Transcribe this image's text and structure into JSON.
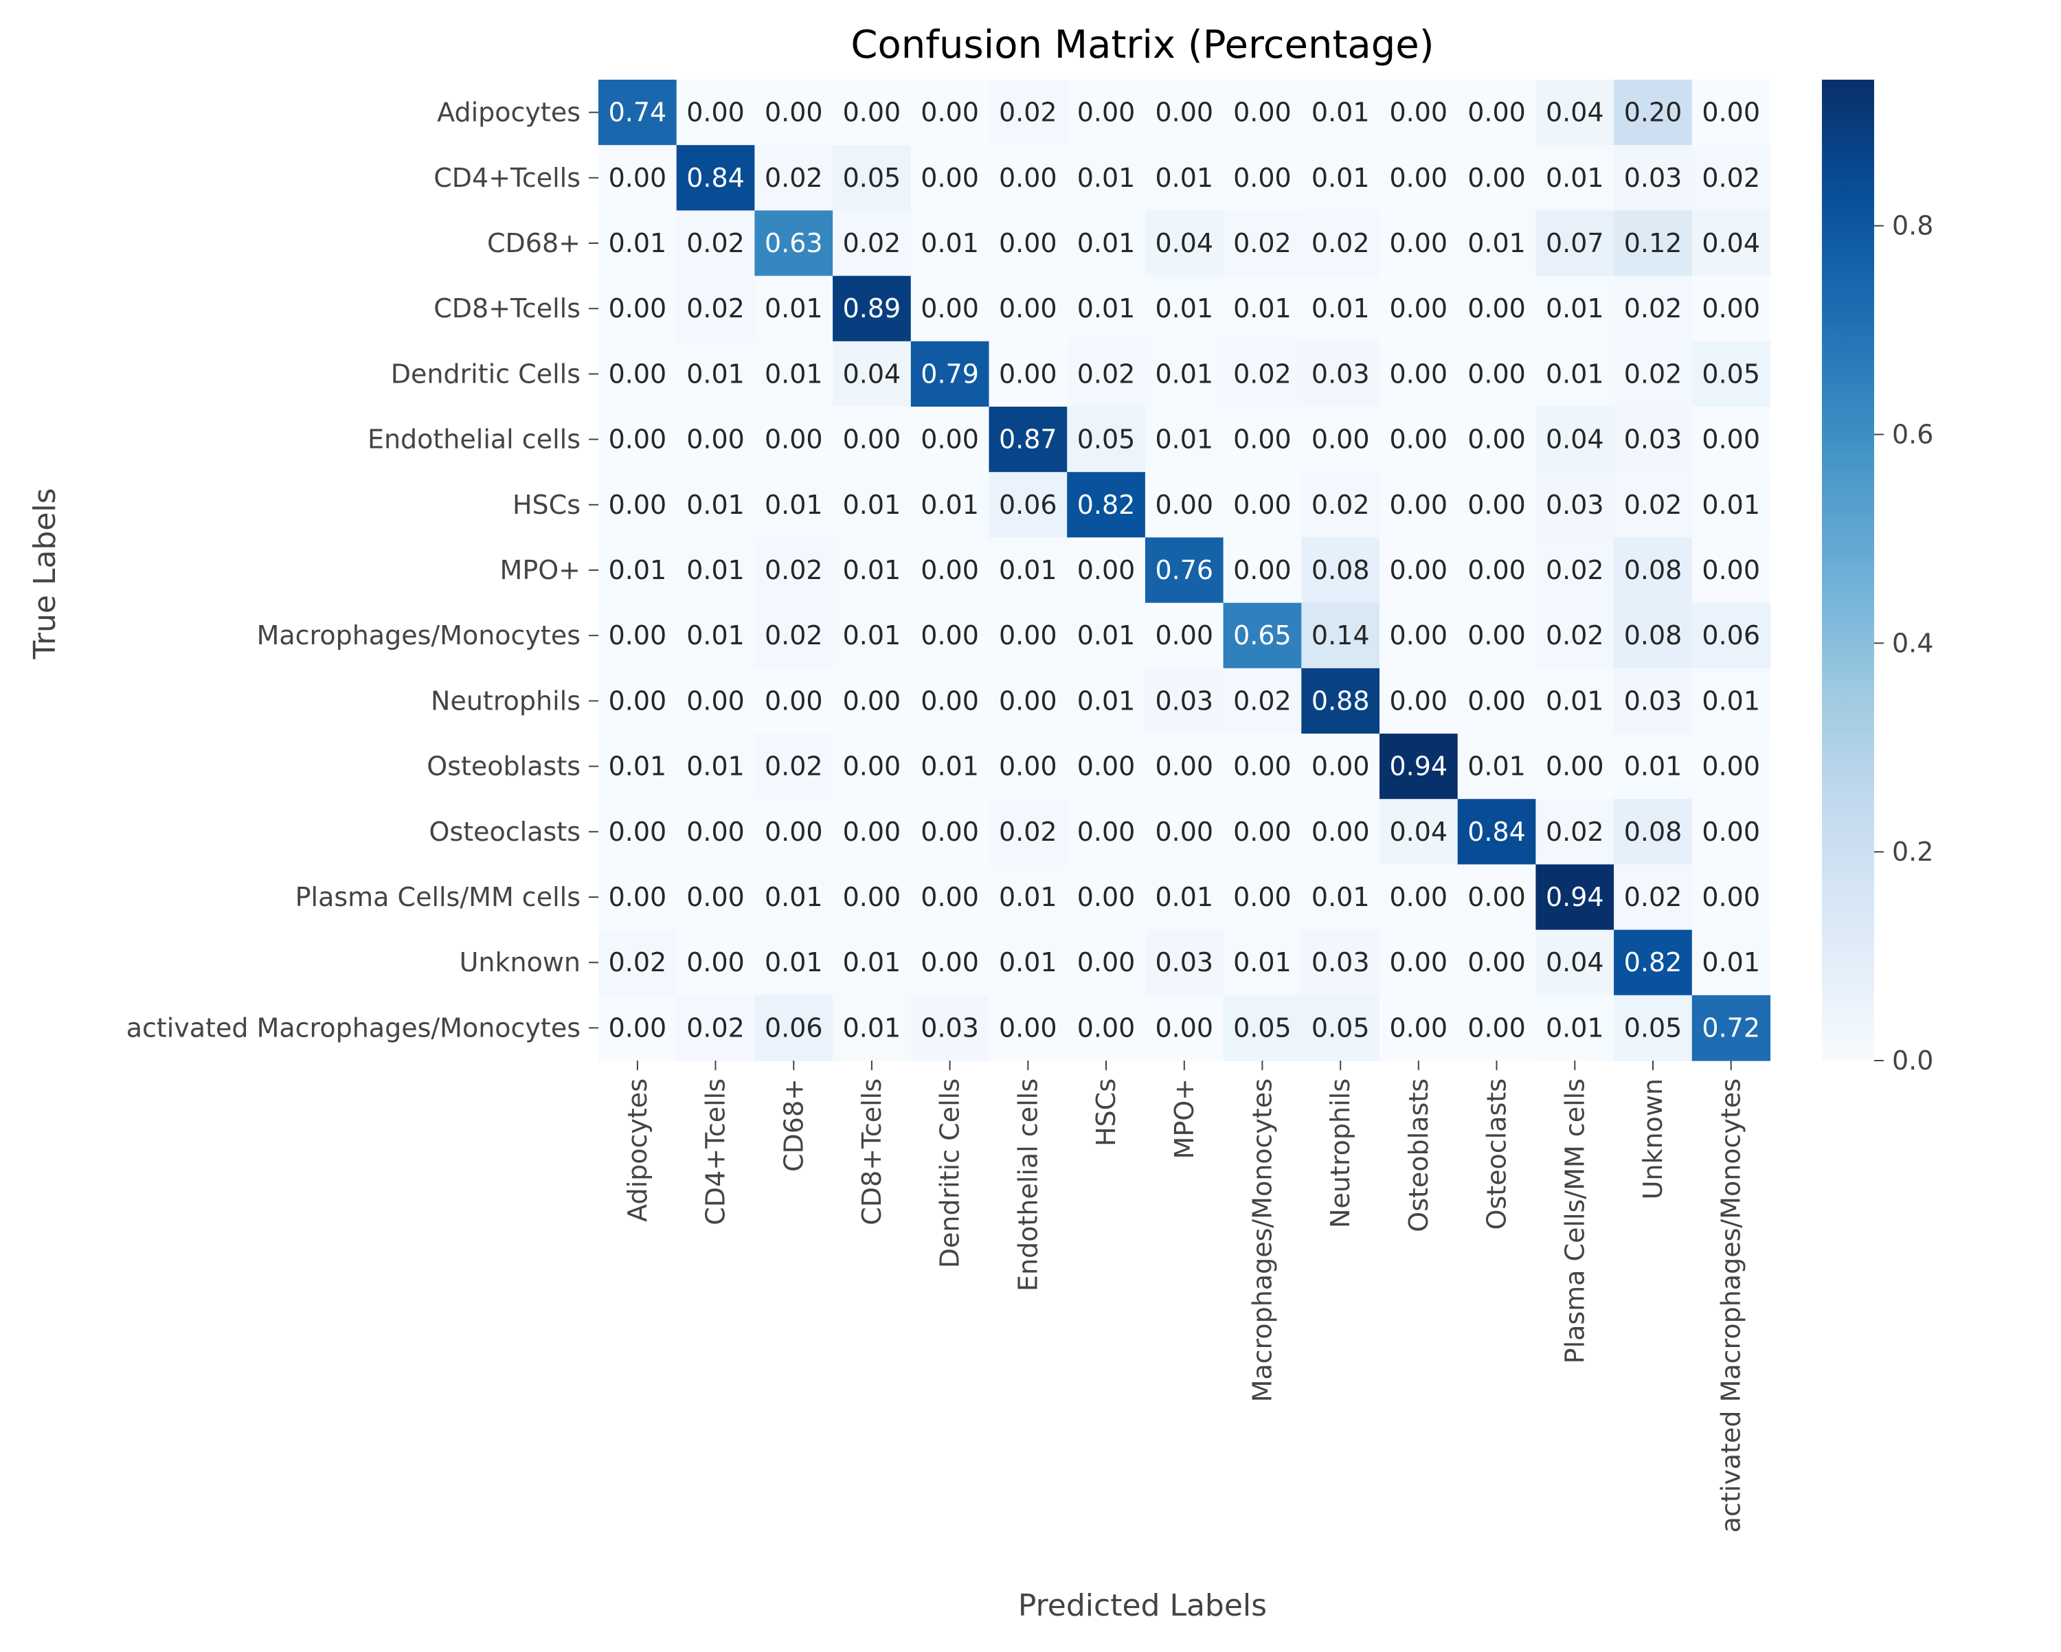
{
  "chart_data": {
    "type": "heatmap",
    "title": "Confusion Matrix (Percentage)",
    "xlabel": "Predicted Labels",
    "ylabel": "True Labels",
    "x_categories": [
      "Adipocytes",
      "CD4+Tcells",
      "CD68+",
      "CD8+Tcells",
      "Dendritic Cells",
      "Endothelial cells",
      "HSCs",
      "MPO+",
      "Macrophages/Monocytes",
      "Neutrophils",
      "Osteoblasts",
      "Osteoclasts",
      "Plasma Cells/MM cells",
      "Unknown",
      "activated Macrophages/Monocytes"
    ],
    "y_categories": [
      "Adipocytes",
      "CD4+Tcells",
      "CD68+",
      "CD8+Tcells",
      "Dendritic Cells",
      "Endothelial cells",
      "HSCs",
      "MPO+",
      "Macrophages/Monocytes",
      "Neutrophils",
      "Osteoblasts",
      "Osteoclasts",
      "Plasma Cells/MM cells",
      "Unknown",
      "activated Macrophages/Monocytes"
    ],
    "values": [
      [
        0.74,
        0.0,
        0.0,
        0.0,
        0.0,
        0.02,
        0.0,
        0.0,
        0.0,
        0.01,
        0.0,
        0.0,
        0.04,
        0.2,
        0.0
      ],
      [
        0.0,
        0.84,
        0.02,
        0.05,
        0.0,
        0.0,
        0.01,
        0.01,
        0.0,
        0.01,
        0.0,
        0.0,
        0.01,
        0.03,
        0.02
      ],
      [
        0.01,
        0.02,
        0.63,
        0.02,
        0.01,
        0.0,
        0.01,
        0.04,
        0.02,
        0.02,
        0.0,
        0.01,
        0.07,
        0.12,
        0.04
      ],
      [
        0.0,
        0.02,
        0.01,
        0.89,
        0.0,
        0.0,
        0.01,
        0.01,
        0.01,
        0.01,
        0.0,
        0.0,
        0.01,
        0.02,
        0.0
      ],
      [
        0.0,
        0.01,
        0.01,
        0.04,
        0.79,
        0.0,
        0.02,
        0.01,
        0.02,
        0.03,
        0.0,
        0.0,
        0.01,
        0.02,
        0.05
      ],
      [
        0.0,
        0.0,
        0.0,
        0.0,
        0.0,
        0.87,
        0.05,
        0.01,
        0.0,
        0.0,
        0.0,
        0.0,
        0.04,
        0.03,
        0.0
      ],
      [
        0.0,
        0.01,
        0.01,
        0.01,
        0.01,
        0.06,
        0.82,
        0.0,
        0.0,
        0.02,
        0.0,
        0.0,
        0.03,
        0.02,
        0.01
      ],
      [
        0.01,
        0.01,
        0.02,
        0.01,
        0.0,
        0.01,
        0.0,
        0.76,
        0.0,
        0.08,
        0.0,
        0.0,
        0.02,
        0.08,
        0.0
      ],
      [
        0.0,
        0.01,
        0.02,
        0.01,
        0.0,
        0.0,
        0.01,
        0.0,
        0.65,
        0.14,
        0.0,
        0.0,
        0.02,
        0.08,
        0.06
      ],
      [
        0.0,
        0.0,
        0.0,
        0.0,
        0.0,
        0.0,
        0.01,
        0.03,
        0.02,
        0.88,
        0.0,
        0.0,
        0.01,
        0.03,
        0.01
      ],
      [
        0.01,
        0.01,
        0.02,
        0.0,
        0.01,
        0.0,
        0.0,
        0.0,
        0.0,
        0.0,
        0.94,
        0.01,
        0.0,
        0.01,
        0.0
      ],
      [
        0.0,
        0.0,
        0.0,
        0.0,
        0.0,
        0.02,
        0.0,
        0.0,
        0.0,
        0.0,
        0.04,
        0.84,
        0.02,
        0.08,
        0.0
      ],
      [
        0.0,
        0.0,
        0.01,
        0.0,
        0.0,
        0.01,
        0.0,
        0.01,
        0.0,
        0.01,
        0.0,
        0.0,
        0.94,
        0.02,
        0.0
      ],
      [
        0.02,
        0.0,
        0.01,
        0.01,
        0.0,
        0.01,
        0.0,
        0.03,
        0.01,
        0.03,
        0.0,
        0.0,
        0.04,
        0.82,
        0.01
      ],
      [
        0.0,
        0.02,
        0.06,
        0.01,
        0.03,
        0.0,
        0.0,
        0.0,
        0.05,
        0.05,
        0.0,
        0.0,
        0.01,
        0.05,
        0.72
      ]
    ],
    "colorbar": {
      "colormap": "Blues",
      "range": [
        0.0,
        0.94
      ],
      "ticks": [
        0.0,
        0.2,
        0.4,
        0.6,
        0.8
      ],
      "tick_labels": [
        "0.0",
        "0.2",
        "0.4",
        "0.6",
        "0.8"
      ]
    },
    "grid": false,
    "legend": "colorbar-right"
  }
}
